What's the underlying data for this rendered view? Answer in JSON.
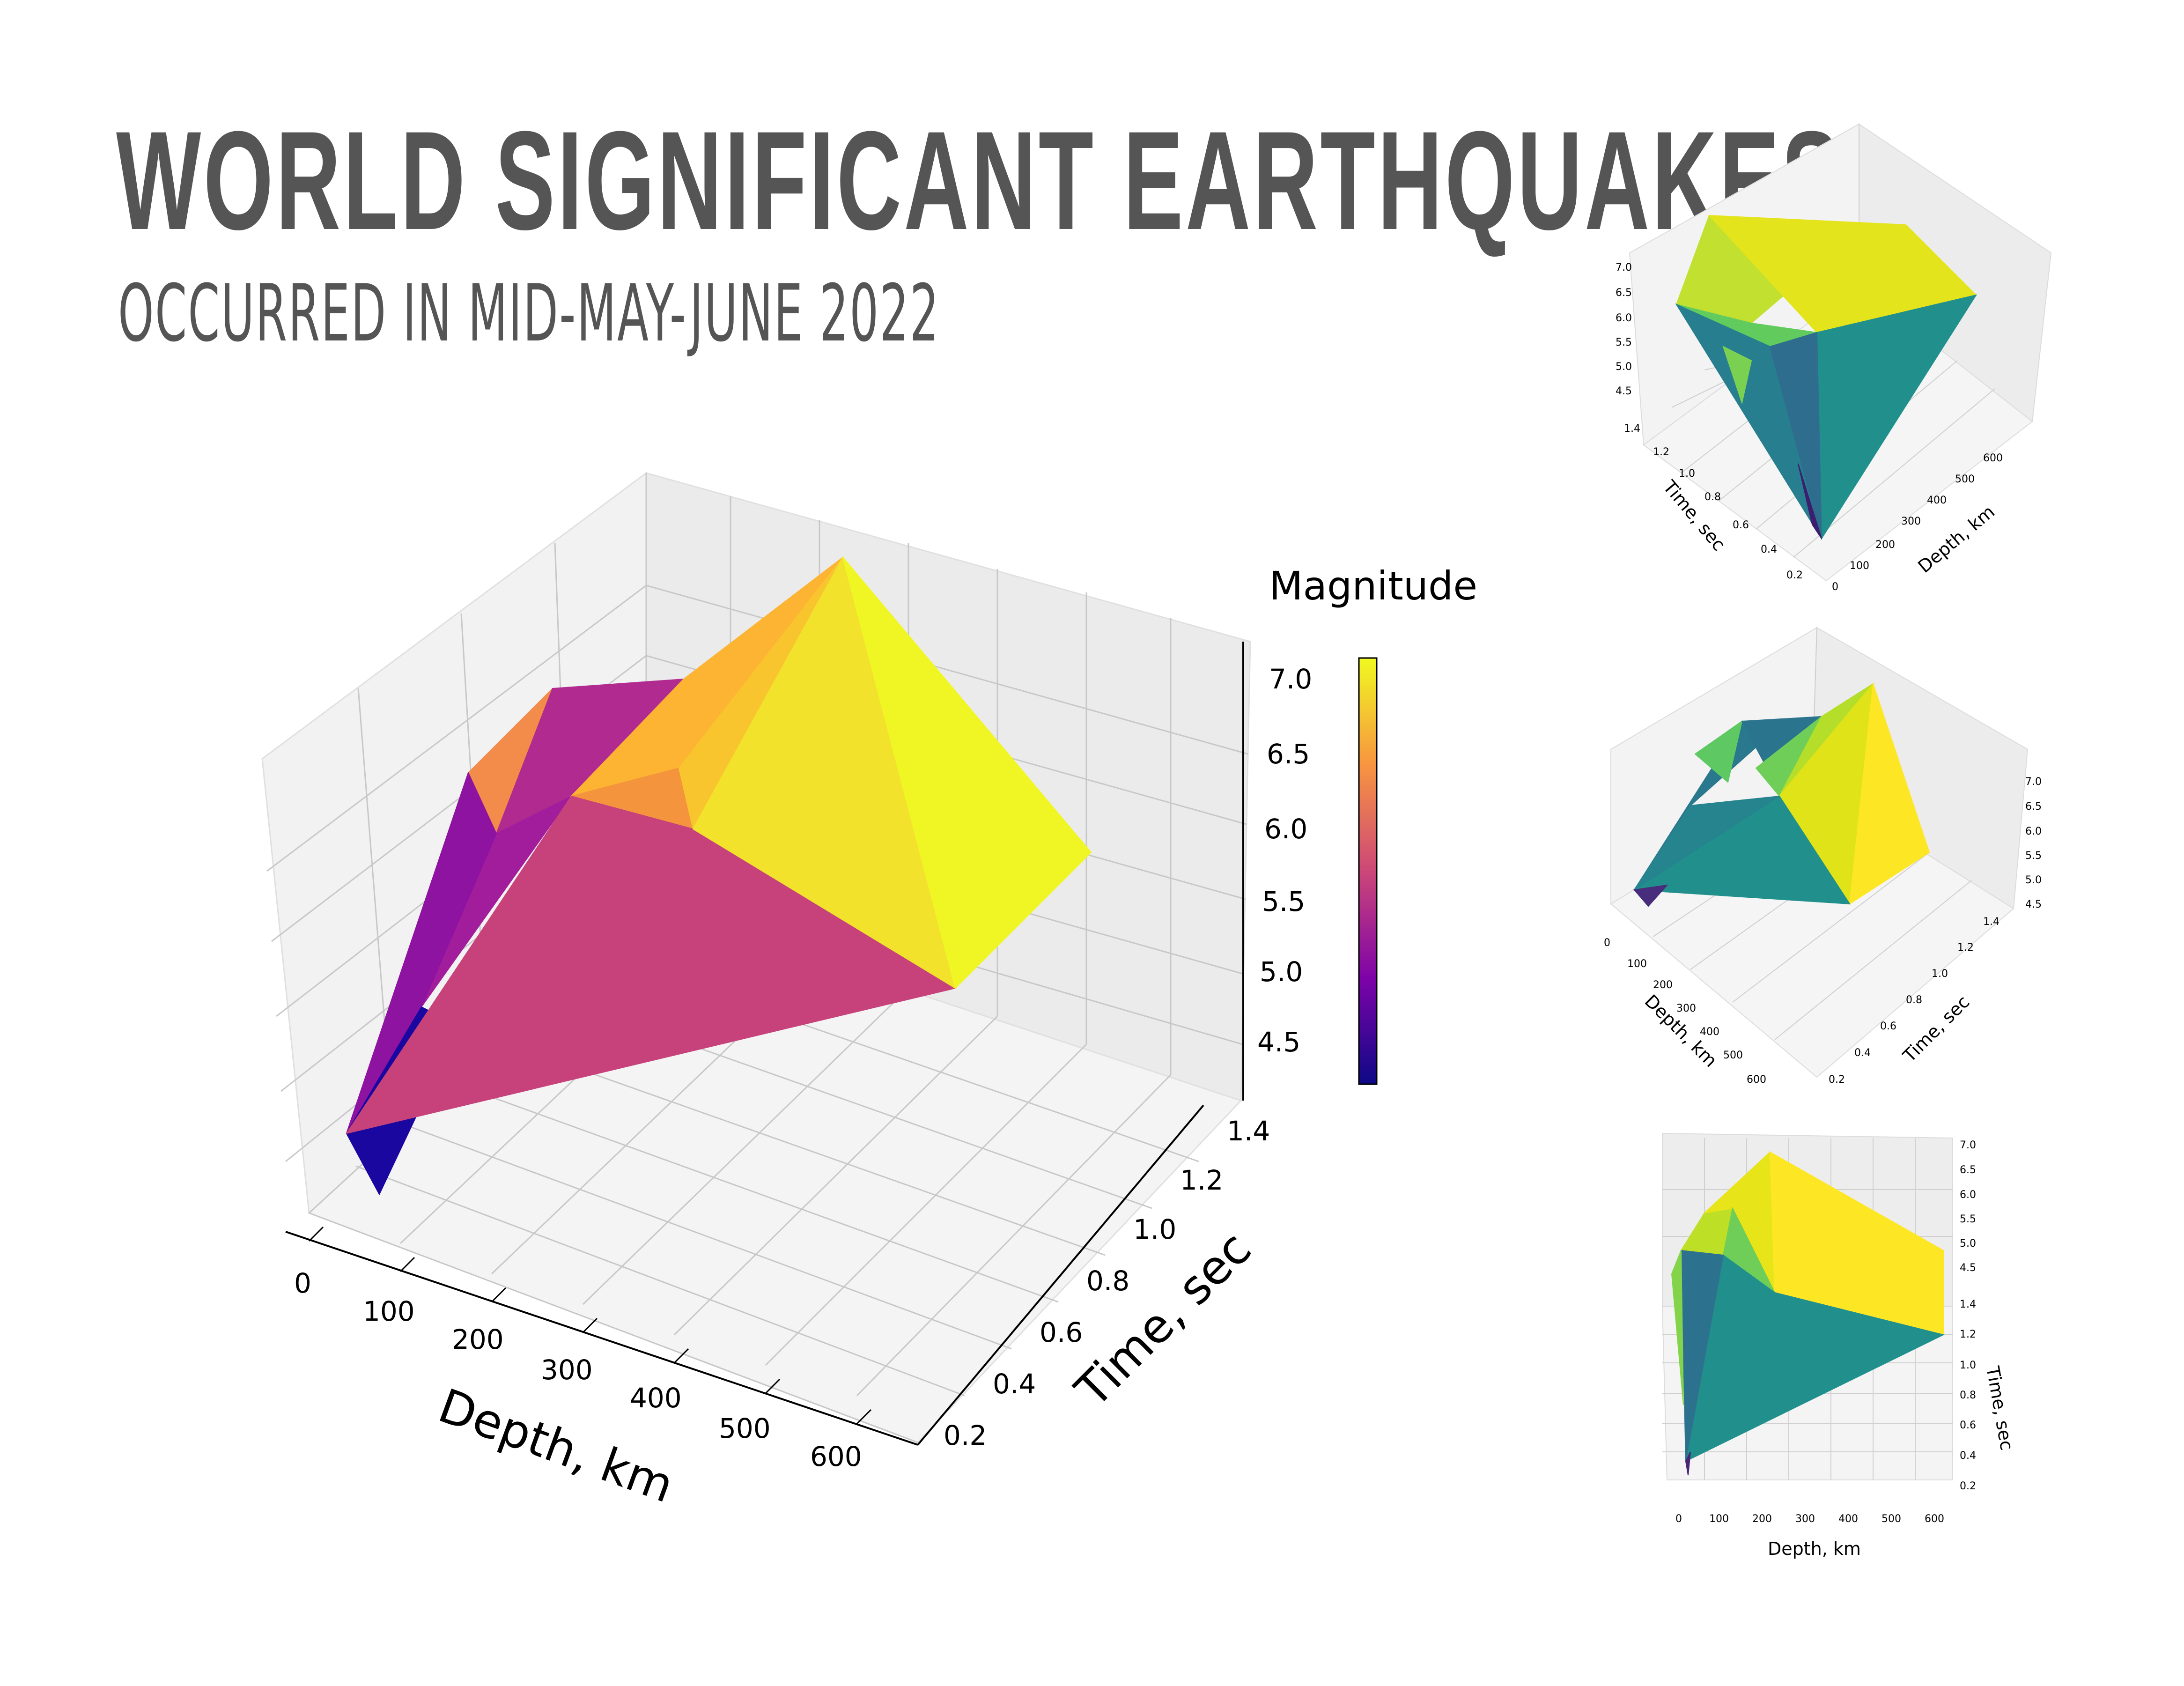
{
  "title": "WORLD SIGNIFICANT EARTHQUAKES",
  "subtitle": "OCCURRED IN MID-MAY-JUNE 2022",
  "chart_data": [
    {
      "type": "surface",
      "name": "main-plot",
      "colormap": "plasma",
      "xlabel": "Depth, km",
      "ylabel": "Time, sec",
      "zlabel": "Magnitude",
      "x_ticks": [
        "0",
        "100",
        "200",
        "300",
        "400",
        "500",
        "600"
      ],
      "y_ticks": [
        "0.2",
        "0.4",
        "0.6",
        "0.8",
        "1.0",
        "1.2",
        "1.4"
      ],
      "z_ticks": [
        "4.5",
        "5.0",
        "5.5",
        "6.0",
        "6.5",
        "7.0"
      ],
      "colorbar_label": "Magnitude",
      "colorbar_range": [
        4.2,
        7.2
      ],
      "xlim": [
        0,
        650
      ],
      "ylim": [
        0.2,
        1.4
      ],
      "zlim": [
        4.2,
        7.2
      ],
      "grid": true
    },
    {
      "type": "surface",
      "name": "view-top",
      "colormap": "viridis",
      "xlabel": "Depth, km",
      "ylabel": "Time, sec",
      "x_ticks": [
        "0",
        "100",
        "200",
        "300",
        "400",
        "500",
        "600"
      ],
      "y_ticks": [
        "0.2",
        "0.4",
        "0.6",
        "0.8",
        "1.0",
        "1.2",
        "1.4"
      ],
      "z_ticks": [
        "4.5",
        "5.0",
        "5.5",
        "6.0",
        "6.5",
        "7.0"
      ],
      "grid": true
    },
    {
      "type": "surface",
      "name": "view-middle",
      "colormap": "viridis",
      "xlabel": "Depth, km",
      "ylabel": "Time, sec",
      "x_ticks": [
        "0",
        "100",
        "200",
        "300",
        "400",
        "500",
        "600"
      ],
      "y_ticks": [
        "0.2",
        "0.4",
        "0.6",
        "0.8",
        "1.0",
        "1.2",
        "1.4"
      ],
      "z_ticks": [
        "4.5",
        "5.0",
        "5.5",
        "6.0",
        "6.5",
        "7.0"
      ],
      "grid": true
    },
    {
      "type": "surface",
      "name": "view-bottom",
      "colormap": "viridis",
      "xlabel": "Depth, km",
      "ylabel": "Time, sec",
      "x_ticks": [
        "0",
        "100",
        "200",
        "300",
        "400",
        "500",
        "600"
      ],
      "y_ticks": [
        "0.2",
        "0.4",
        "0.6",
        "0.8",
        "1.0",
        "1.2",
        "1.4"
      ],
      "z_ticks": [
        "4.5",
        "5.0",
        "5.5",
        "6.0",
        "6.5",
        "7.0"
      ],
      "grid": true
    }
  ]
}
